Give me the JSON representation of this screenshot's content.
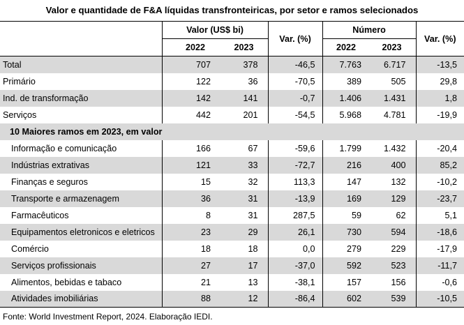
{
  "title": "Valor e quantidade de F&A líquidas transfronteiricas, por setor e ramos selecionados",
  "header": {
    "valor_group": "Valor (US$ bi)",
    "numero_group": "Número",
    "var_label": "Var. (%)",
    "year_a": "2022",
    "year_b": "2023"
  },
  "subheader": "10 Maiores ramos em 2023, em valor",
  "sectors": [
    {
      "label": "Total",
      "v2022": "707",
      "v2023": "378",
      "vvar": "-46,5",
      "n2022": "7.763",
      "n2023": "6.717",
      "nvar": "-13,5"
    },
    {
      "label": "Primário",
      "v2022": "122",
      "v2023": "36",
      "vvar": "-70,5",
      "n2022": "389",
      "n2023": "505",
      "nvar": "29,8"
    },
    {
      "label": "Ind. de transformação",
      "v2022": "142",
      "v2023": "141",
      "vvar": "-0,7",
      "n2022": "1.406",
      "n2023": "1.431",
      "nvar": "1,8"
    },
    {
      "label": "Serviços",
      "v2022": "442",
      "v2023": "201",
      "vvar": "-54,5",
      "n2022": "5.968",
      "n2023": "4.781",
      "nvar": "-19,9"
    }
  ],
  "branches": [
    {
      "label": "Informação e comunicação",
      "v2022": "166",
      "v2023": "67",
      "vvar": "-59,6",
      "n2022": "1.799",
      "n2023": "1.432",
      "nvar": "-20,4"
    },
    {
      "label": "Indústrias extrativas",
      "v2022": "121",
      "v2023": "33",
      "vvar": "-72,7",
      "n2022": "216",
      "n2023": "400",
      "nvar": "85,2"
    },
    {
      "label": "Finanças e seguros",
      "v2022": "15",
      "v2023": "32",
      "vvar": "113,3",
      "n2022": "147",
      "n2023": "132",
      "nvar": "-10,2"
    },
    {
      "label": "Transporte e armazenagem",
      "v2022": "36",
      "v2023": "31",
      "vvar": "-13,9",
      "n2022": "169",
      "n2023": "129",
      "nvar": "-23,7"
    },
    {
      "label": "Farmacêuticos",
      "v2022": "8",
      "v2023": "31",
      "vvar": "287,5",
      "n2022": "59",
      "n2023": "62",
      "nvar": "5,1"
    },
    {
      "label": "Equipamentos eletronicos e eletricos",
      "v2022": "23",
      "v2023": "29",
      "vvar": "26,1",
      "n2022": "730",
      "n2023": "594",
      "nvar": "-18,6"
    },
    {
      "label": "Comércio",
      "v2022": "18",
      "v2023": "18",
      "vvar": "0,0",
      "n2022": "279",
      "n2023": "229",
      "nvar": "-17,9"
    },
    {
      "label": "Serviços profissionais",
      "v2022": "27",
      "v2023": "17",
      "vvar": "-37,0",
      "n2022": "592",
      "n2023": "523",
      "nvar": "-11,7"
    },
    {
      "label": "Alimentos, bebidas e tabaco",
      "v2022": "21",
      "v2023": "13",
      "vvar": "-38,1",
      "n2022": "157",
      "n2023": "156",
      "nvar": "-0,6"
    },
    {
      "label": "Atividades imobiliárias",
      "v2022": "88",
      "v2023": "12",
      "vvar": "-86,4",
      "n2022": "602",
      "n2023": "539",
      "nvar": "-10,5"
    }
  ],
  "source": "Fonte: World Investment Report, 2024. Elaboração IEDI.",
  "colors": {
    "shade": "#d9d9d9",
    "border": "#000000"
  }
}
